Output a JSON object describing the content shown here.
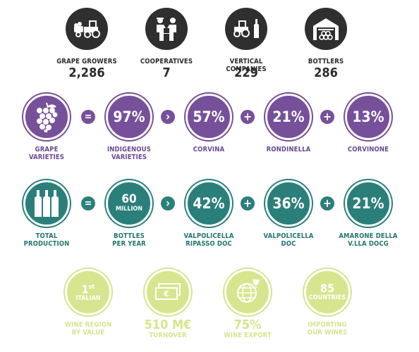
{
  "producers": [
    {
      "label": "GRAPE GROWERS",
      "value": "2,286",
      "icon": "tractor-icon"
    },
    {
      "label": "COOPERATIVES",
      "value": "7",
      "icon": "handshake-icon"
    },
    {
      "label": "VERTICAL COMPANIES",
      "value": "229",
      "icon": "tractor-bottle-icon"
    },
    {
      "label": "BOTTLERS",
      "value": "286",
      "icon": "warehouse-icon"
    }
  ],
  "varieties": {
    "main_label_1": "GRAPE",
    "main_label_2": "VARIETIES",
    "items": [
      {
        "value": "97%",
        "label_1": "INDIGENOUS",
        "label_2": "VARIETIES"
      },
      {
        "value": "57%",
        "label_1": "CORVINA",
        "label_2": ""
      },
      {
        "value": "21%",
        "label_1": "RONDINELLA",
        "label_2": ""
      },
      {
        "value": "13%",
        "label_1": "CORVINONE",
        "label_2": ""
      }
    ]
  },
  "production": {
    "main_label_1": "TOTAL",
    "main_label_2": "PRODUCTION",
    "bottles_value": "60",
    "bottles_unit": "MILLION",
    "bottles_label_1": "BOTTLES",
    "bottles_label_2": "PER YEAR",
    "items": [
      {
        "value": "42%",
        "label_1": "VALPOLICELLA",
        "label_2": "RIPASSO DOC"
      },
      {
        "value": "36%",
        "label_1": "VALPOLICELLA",
        "label_2": "DOC"
      },
      {
        "value": "21%",
        "label_1": "AMARONE DELLA",
        "label_2": "V.LLA DOCG"
      }
    ]
  },
  "economy": {
    "rank_number": "1",
    "rank_suffix": "st",
    "rank_word": "ITALIAN",
    "rank_label_1": "WINE REGION",
    "rank_label_2": "BY VALUE",
    "turnover_value": "510 M€",
    "turnover_label": "TURNOVER",
    "currency_symbol": "€",
    "export_value": "75%",
    "export_label": "WINE EXPORT",
    "countries_value": "85",
    "countries_word": "COUNTRIES",
    "countries_label_1": "IMPORTING",
    "countries_label_2": "OUR WINES"
  },
  "operators": {
    "equals": "=",
    "then": "›",
    "plus": "+"
  },
  "colors": {
    "dark": "#2f2f2f",
    "purple": "#76509b",
    "teal": "#2a7f7b",
    "lime": "#d7e58e"
  }
}
